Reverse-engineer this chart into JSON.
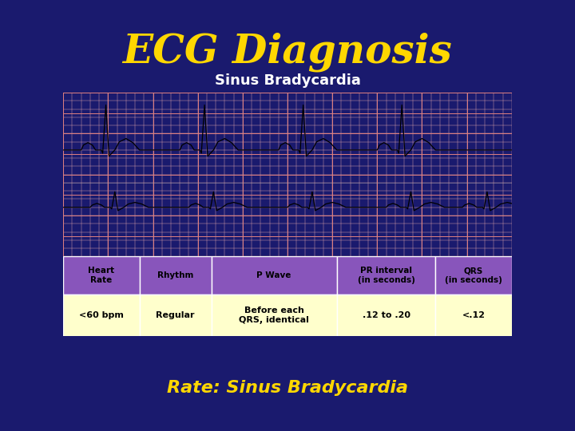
{
  "title": "ECG Diagnosis",
  "title_color": "#FFD700",
  "title_fontsize": 36,
  "bg_color": "#1a1a6e",
  "ecg_header": "Sinus Bradycardia",
  "ecg_header_color": "white",
  "ecg_header_bg": "#8855bb",
  "ecg_paper_color": "#f5d0d0",
  "ecg_grid_major": "#e08080",
  "ecg_grid_minor": "#f0b0b0",
  "table_header_bg": "#8855bb",
  "table_header_color": "black",
  "table_data_bg": "#ffffcc",
  "table_data_color": "black",
  "table_border_color": "white",
  "table_headers": [
    "Heart\nRate",
    "Rhythm",
    "P Wave",
    "PR interval\n(in seconds)",
    "QRS\n(in seconds)"
  ],
  "table_values": [
    "<60 bpm",
    "Regular",
    "Before each\nQRS, identical",
    ".12 to .20",
    "<.12"
  ],
  "subtitle": "Rate: Sinus Bradycardia",
  "subtitle_color": "#FFD700",
  "subtitle_fontsize": 16
}
